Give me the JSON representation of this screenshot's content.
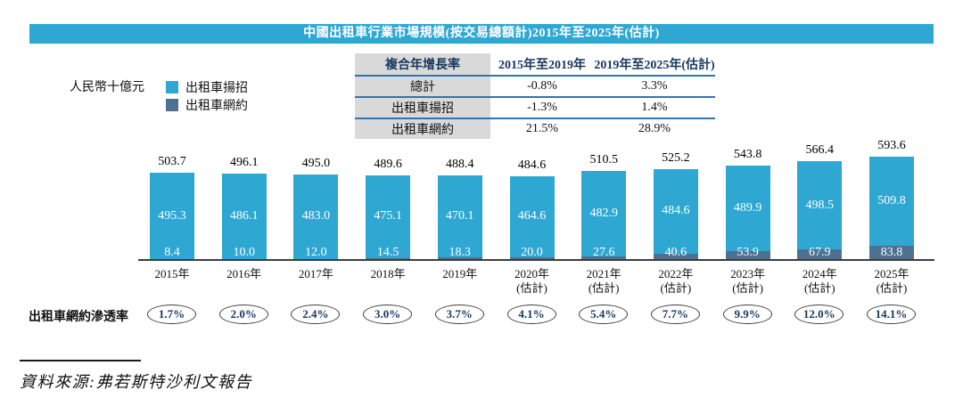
{
  "title": "中國出租車行業市場規模(按交易總額計)2015年至2025年(估計)",
  "unit_label": "人民幣十億元",
  "legend": {
    "hail": {
      "label": "出租車揚招",
      "color": "#2FA7D3"
    },
    "ride_hailing": {
      "label": "出租車網約",
      "color": "#4E7191"
    }
  },
  "cagr_table": {
    "header": [
      "複合年增長率",
      "2015年至2019年",
      "2019年至2025年(估計)"
    ],
    "rows": [
      {
        "label": "總計",
        "v1": "-0.8%",
        "v2": "3.3%"
      },
      {
        "label": "出租車揚招",
        "v1": "-1.3%",
        "v2": "1.4%"
      },
      {
        "label": "出租車網約",
        "v1": "21.5%",
        "v2": "28.9%"
      }
    ]
  },
  "chart_data": {
    "type": "bar",
    "stacked": true,
    "title": "中國出租車行業市場規模(按交易總額計)2015年至2025年(估計)",
    "ylabel": "人民幣十億元",
    "grid": false,
    "legend_position": "top-left",
    "categories": [
      {
        "year": "2015年",
        "note": ""
      },
      {
        "year": "2016年",
        "note": ""
      },
      {
        "year": "2017年",
        "note": ""
      },
      {
        "year": "2018年",
        "note": ""
      },
      {
        "year": "2019年",
        "note": ""
      },
      {
        "year": "2020年",
        "note": "(估計)"
      },
      {
        "year": "2021年",
        "note": "(估計)"
      },
      {
        "year": "2022年",
        "note": "(估計)"
      },
      {
        "year": "2023年",
        "note": "(估計)"
      },
      {
        "year": "2024年",
        "note": "(估計)"
      },
      {
        "year": "2025年",
        "note": "(估計)"
      }
    ],
    "series": [
      {
        "name": "出租車揚招",
        "color": "#2FA7D3",
        "values": [
          495.3,
          486.1,
          483.0,
          475.1,
          470.1,
          464.6,
          482.9,
          484.6,
          489.9,
          498.5,
          509.8
        ]
      },
      {
        "name": "出租車網約",
        "color": "#4E7191",
        "values": [
          8.4,
          10.0,
          12.0,
          14.5,
          18.3,
          20.0,
          27.6,
          40.6,
          53.9,
          67.9,
          83.8
        ]
      }
    ],
    "totals": [
      503.7,
      496.1,
      495.0,
      489.6,
      488.4,
      484.6,
      510.5,
      525.2,
      543.8,
      566.4,
      593.6
    ]
  },
  "penetration": {
    "label": "出租車網約滲透率",
    "values": [
      "1.7%",
      "2.0%",
      "2.4%",
      "3.0%",
      "3.7%",
      "4.1%",
      "5.4%",
      "7.7%",
      "9.9%",
      "12.0%",
      "14.1%"
    ]
  },
  "source": "資料來源:弗若斯特沙利文報告",
  "colors": {
    "banner": "#2FA7D3",
    "bar_hail": "#2FA7D3",
    "bar_ride": "#4E7191",
    "table_line": "#2E74B5",
    "table_label_bg": "#D9D9D9",
    "navy_text": "#17375E"
  }
}
